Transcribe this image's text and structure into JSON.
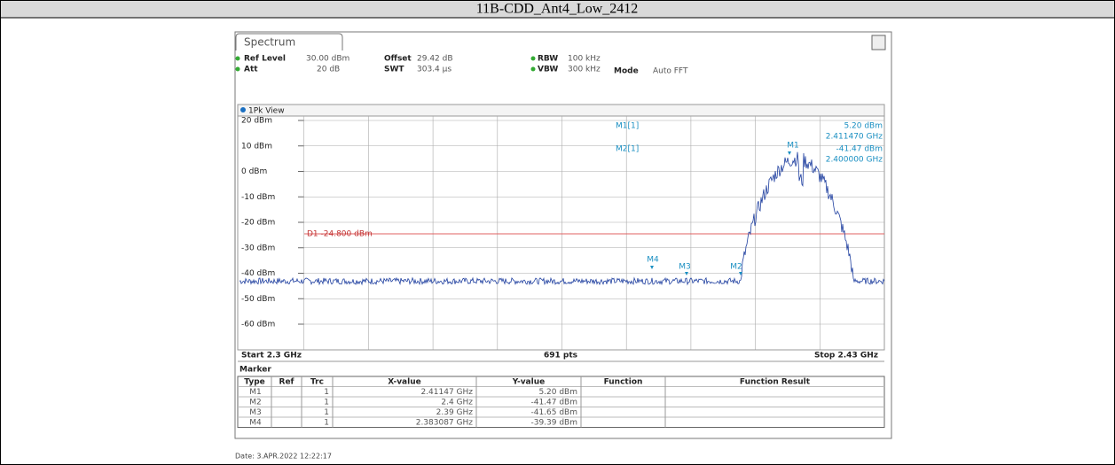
{
  "header": {
    "title": "11B-CDD_Ant4_Low_2412"
  },
  "screen": {
    "tab": "Spectrum",
    "settings": [
      [
        "Ref Level",
        "30.00 dBm"
      ],
      [
        "Att",
        "20 dB"
      ],
      [
        "Offset",
        "29.42 dB"
      ],
      [
        "SWT",
        "303.4 µs"
      ],
      [
        "RBW",
        "100 kHz"
      ],
      [
        "VBW",
        "300 kHz"
      ],
      [
        "Mode",
        "Auto FFT"
      ]
    ],
    "view": "1Pk View",
    "ylabels": [
      "20 dBm",
      "10 dBm",
      "0 dBm",
      "-10 dBm",
      "-20 dBm",
      "-30 dBm",
      "-40 dBm",
      "-50 dBm",
      "-60 dBm"
    ],
    "display_line": "D1 -24.800 dBm",
    "readout": [
      [
        "M1[1]",
        "5.20 dBm",
        "2.411470 GHz"
      ],
      [
        "M2[1]",
        "-41.47 dBm",
        "2.400000 GHz"
      ]
    ],
    "marker_tags": [
      "M1",
      "M2",
      "M3",
      "M4"
    ],
    "start": "Start 2.3 GHz",
    "points": "691 pts",
    "stop": "Stop 2.43 GHz",
    "marker_title": "Marker",
    "table": {
      "columns": [
        "Type",
        "Ref",
        "Trc",
        "X-value",
        "Y-value",
        "Function",
        "Function Result"
      ],
      "rows": [
        [
          "M1",
          "",
          "1",
          "2.41147 GHz",
          "5.20 dBm",
          "",
          ""
        ],
        [
          "M2",
          "",
          "1",
          "2.4 GHz",
          "-41.47 dBm",
          "",
          ""
        ],
        [
          "M3",
          "",
          "1",
          "2.39 GHz",
          "-41.65 dBm",
          "",
          ""
        ],
        [
          "M4",
          "",
          "1",
          "2.383087 GHz",
          "-39.39 dBm",
          "",
          ""
        ]
      ]
    }
  },
  "footer": {
    "date": "Date: 3.APR.2022  12:22:17"
  }
}
